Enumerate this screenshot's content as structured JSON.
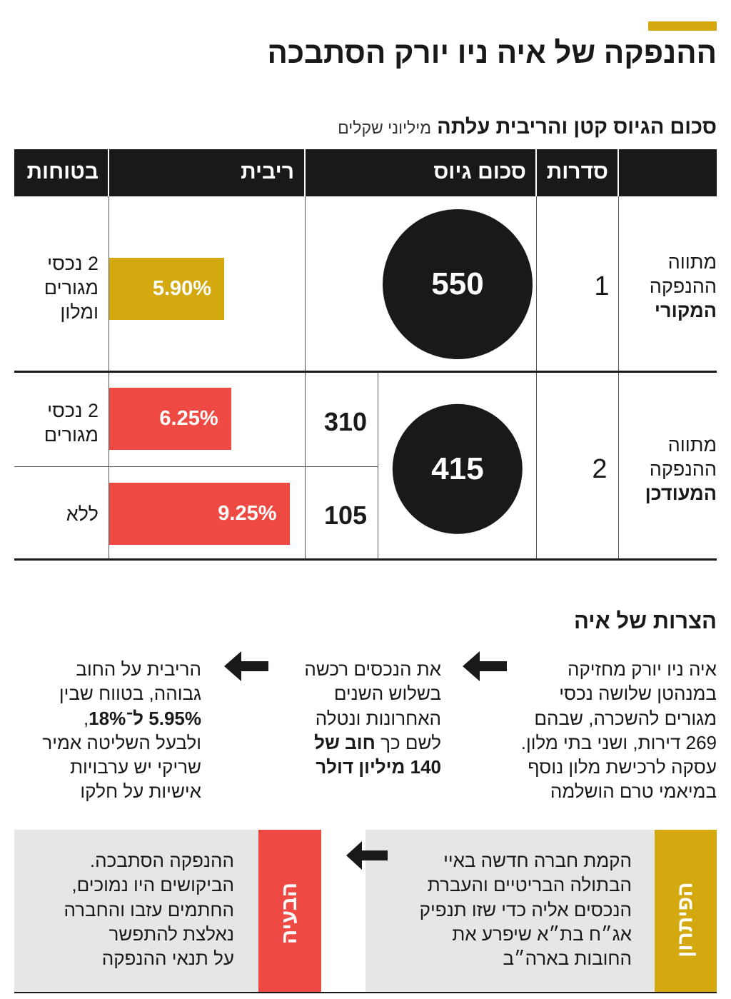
{
  "header": {
    "title": "ההנפקה של איה ניו יורק הסתבכה"
  },
  "table": {
    "subtitle": "סכום הגיוס קטן והריבית עלתה",
    "unit": "מיליוני שקלים",
    "columns": [
      "סדרות",
      "סכום גיוס",
      "ריבית",
      "בטוחות"
    ],
    "rows": [
      {
        "label": [
          "מתווה",
          "ההנפקה"
        ],
        "label_bold": "המקורי",
        "series": 1,
        "raise": 550,
        "tranches": [
          {
            "rate": {
              "value": 5.9,
              "label": "5.90%"
            },
            "collateral": [
              "2 נכסי",
              "מגורים",
              "ומלון"
            ]
          }
        ]
      },
      {
        "label": [
          "מתווה",
          "ההנפקה"
        ],
        "label_bold": "המעודכן",
        "series": 2,
        "raise": 415,
        "tranches": [
          {
            "amount": 310,
            "rate": {
              "value": 6.25,
              "label": "6.25%"
            },
            "collateral": [
              "2 נכסי",
              "מגורים"
            ]
          },
          {
            "amount": 105,
            "rate": {
              "value": 9.25,
              "label": "9.25%"
            },
            "collateral": [
              "ללא"
            ]
          }
        ]
      }
    ]
  },
  "troubles": {
    "title": "הצרות של איה",
    "first": [
      "איה ניו יורק מחזיקה",
      "במנהטן שלושה נכסי",
      "מגורים להשכרה, שבהם",
      "269 דירות, ושני בתי מלון.",
      "עסקה לרכישת מלון נוסף",
      "במיאמי טרם הושלמה"
    ],
    "second": [
      "את הנכסים רכשה",
      "בשלוש השנים",
      "האחרונות ונטלה"
    ],
    "second_line4": "לשם כך",
    "second_line4_bold": "חוב של",
    "second_line5_bold": "140 מיליון דולר",
    "third_lines_a": [
      "הריבית על החוב",
      "גבוהה, בטווח שבין"
    ],
    "third_line3_bold": "5.95% ל־18%",
    "third_line3_tail": ",",
    "third_lines_b": [
      "ולבעל השליטה אמיר",
      "שריקי יש ערבויות",
      "אישיות על חלקו"
    ]
  },
  "resolution": {
    "fix_label": "הפיתרון",
    "fix": [
      "הקמת חברה חדשה באיי",
      "הבתולה הבריטיים והעברת",
      "הנכסים אליה כדי שזו תנפיק",
      "אג״ח בת״א שיפרע את",
      "החובות בארה״ב"
    ],
    "problem_label": "הבעיה",
    "problem": [
      "ההנפקה הסתבכה.",
      "הביקושים היו נמוכים,",
      "החתמים עזבו והחברה",
      "נאלצת להתפשר",
      "על תנאי ההנפקה"
    ]
  }
}
